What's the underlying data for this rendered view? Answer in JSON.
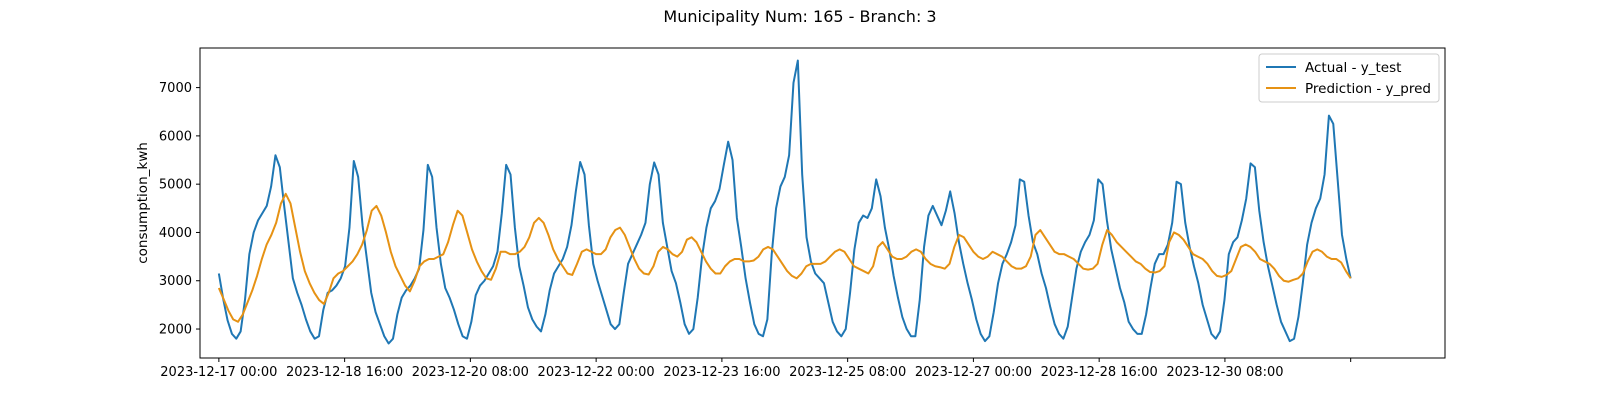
{
  "chart_data": {
    "type": "line",
    "title": "Municipality Num: 165 - Branch: 3",
    "xlabel": "",
    "ylabel": "consumption_kwh",
    "x_start": "2023-12-17 00:00",
    "x_end": "2024-01-01 00:00",
    "x_step_hours": 2,
    "x_ticks": [
      "2023-12-17 00:00",
      "2023-12-18 16:00",
      "2023-12-20 08:00",
      "2023-12-22 00:00",
      "2023-12-23 16:00",
      "2023-12-25 08:00",
      "2023-12-27 00:00",
      "2023-12-28 16:00",
      "2023-12-30 08:00",
      ""
    ],
    "x_range": [
      "2023-12-16 18:00",
      "2024-01-02 06:00"
    ],
    "y_ticks": [
      2000,
      3000,
      4000,
      5000,
      6000,
      7000
    ],
    "ylim": [
      1400,
      7820
    ],
    "grid": false,
    "legend_position": "top-right",
    "series": [
      {
        "name": "Actual - y_test",
        "color": "#1f77b4",
        "values": [
          3150,
          2620,
          2180,
          1900,
          1800,
          1950,
          2600,
          3550,
          4000,
          4250,
          4400,
          4550,
          4950,
          5600,
          5350,
          4550,
          3800,
          3050,
          2750,
          2500,
          2200,
          1950,
          1800,
          1850,
          2400,
          2750,
          2800,
          2900,
          3050,
          3300,
          4100,
          5480,
          5150,
          4150,
          3450,
          2750,
          2350,
          2100,
          1850,
          1700,
          1800,
          2300,
          2650,
          2800,
          2900,
          3050,
          3250,
          4050,
          5400,
          5150,
          4100,
          3350,
          2850,
          2650,
          2400,
          2100,
          1850,
          1800,
          2150,
          2700,
          2900,
          3000,
          3150,
          3300,
          3600,
          4400,
          5400,
          5200,
          4100,
          3300,
          2900,
          2450,
          2200,
          2050,
          1950,
          2300,
          2800,
          3150,
          3300,
          3450,
          3700,
          4150,
          4850,
          5460,
          5200,
          4150,
          3350,
          3000,
          2700,
          2400,
          2100,
          2000,
          2100,
          2750,
          3350,
          3550,
          3750,
          3950,
          4200,
          5000,
          5450,
          5200,
          4200,
          3700,
          3200,
          2950,
          2550,
          2100,
          1900,
          2000,
          2650,
          3500,
          4100,
          4500,
          4650,
          4900,
          5400,
          5880,
          5500,
          4300,
          3700,
          3050,
          2550,
          2100,
          1900,
          1850,
          2200,
          3550,
          4500,
          4950,
          5150,
          5600,
          7100,
          7560,
          5200,
          3900,
          3400,
          3150,
          3050,
          2950,
          2550,
          2150,
          1950,
          1850,
          2000,
          2750,
          3650,
          4200,
          4350,
          4300,
          4500,
          5100,
          4750,
          4100,
          3650,
          3100,
          2650,
          2250,
          2000,
          1850,
          1850,
          2600,
          3700,
          4350,
          4550,
          4350,
          4150,
          4450,
          4850,
          4400,
          3800,
          3350,
          2950,
          2600,
          2200,
          1900,
          1750,
          1850,
          2350,
          2950,
          3350,
          3550,
          3800,
          4150,
          5100,
          5050,
          4350,
          3800,
          3550,
          3150,
          2850,
          2450,
          2100,
          1900,
          1800,
          2050,
          2650,
          3250,
          3600,
          3800,
          3950,
          4250,
          5100,
          5000,
          4250,
          3650,
          3250,
          2850,
          2550,
          2150,
          2000,
          1900,
          1900,
          2300,
          2850,
          3350,
          3550,
          3550,
          3750,
          4200,
          5050,
          5000,
          4200,
          3700,
          3300,
          2950,
          2500,
          2200,
          1900,
          1800,
          1950,
          2600,
          3550,
          3800,
          3900,
          4250,
          4700,
          5430,
          5350,
          4450,
          3800,
          3300,
          2900,
          2500,
          2150,
          1950,
          1750,
          1800,
          2250,
          2950,
          3750,
          4200,
          4500,
          4700,
          5200,
          6420,
          6250,
          5100,
          3950,
          3450,
          3050
        ]
      },
      {
        "name": "Prediction - y_pred",
        "color": "#e69214",
        "values": [
          2850,
          2620,
          2380,
          2200,
          2150,
          2300,
          2550,
          2800,
          3100,
          3450,
          3750,
          3950,
          4200,
          4600,
          4800,
          4600,
          4100,
          3600,
          3200,
          2950,
          2750,
          2600,
          2520,
          2750,
          3050,
          3150,
          3200,
          3300,
          3400,
          3550,
          3750,
          4050,
          4450,
          4550,
          4350,
          4000,
          3600,
          3300,
          3100,
          2900,
          2780,
          3000,
          3300,
          3400,
          3450,
          3450,
          3500,
          3550,
          3800,
          4150,
          4450,
          4350,
          4000,
          3650,
          3400,
          3200,
          3050,
          3020,
          3250,
          3600,
          3600,
          3550,
          3550,
          3600,
          3700,
          3900,
          4200,
          4300,
          4200,
          3950,
          3650,
          3450,
          3300,
          3150,
          3120,
          3350,
          3600,
          3650,
          3600,
          3550,
          3550,
          3650,
          3900,
          4050,
          4100,
          3950,
          3700,
          3450,
          3250,
          3150,
          3130,
          3300,
          3600,
          3700,
          3650,
          3550,
          3500,
          3600,
          3850,
          3900,
          3800,
          3600,
          3400,
          3250,
          3150,
          3150,
          3300,
          3400,
          3450,
          3450,
          3400,
          3400,
          3420,
          3500,
          3650,
          3700,
          3650,
          3500,
          3350,
          3200,
          3100,
          3050,
          3150,
          3300,
          3350,
          3350,
          3350,
          3400,
          3500,
          3600,
          3650,
          3600,
          3450,
          3300,
          3250,
          3200,
          3150,
          3300,
          3700,
          3800,
          3650,
          3500,
          3450,
          3450,
          3500,
          3600,
          3650,
          3600,
          3450,
          3350,
          3300,
          3280,
          3250,
          3350,
          3700,
          3950,
          3900,
          3750,
          3600,
          3500,
          3450,
          3500,
          3600,
          3550,
          3500,
          3400,
          3300,
          3250,
          3250,
          3300,
          3500,
          3950,
          4050,
          3900,
          3750,
          3600,
          3550,
          3550,
          3500,
          3450,
          3350,
          3250,
          3230,
          3250,
          3350,
          3750,
          4050,
          3950,
          3800,
          3700,
          3600,
          3500,
          3400,
          3350,
          3250,
          3180,
          3170,
          3200,
          3300,
          3800,
          4000,
          3950,
          3850,
          3700,
          3550,
          3500,
          3450,
          3350,
          3200,
          3100,
          3080,
          3120,
          3200,
          3450,
          3700,
          3750,
          3700,
          3600,
          3450,
          3400,
          3350,
          3250,
          3100,
          3000,
          2980,
          3020,
          3050,
          3150,
          3400,
          3600,
          3650,
          3600,
          3500,
          3450,
          3450,
          3380,
          3200,
          3050
        ]
      }
    ]
  }
}
